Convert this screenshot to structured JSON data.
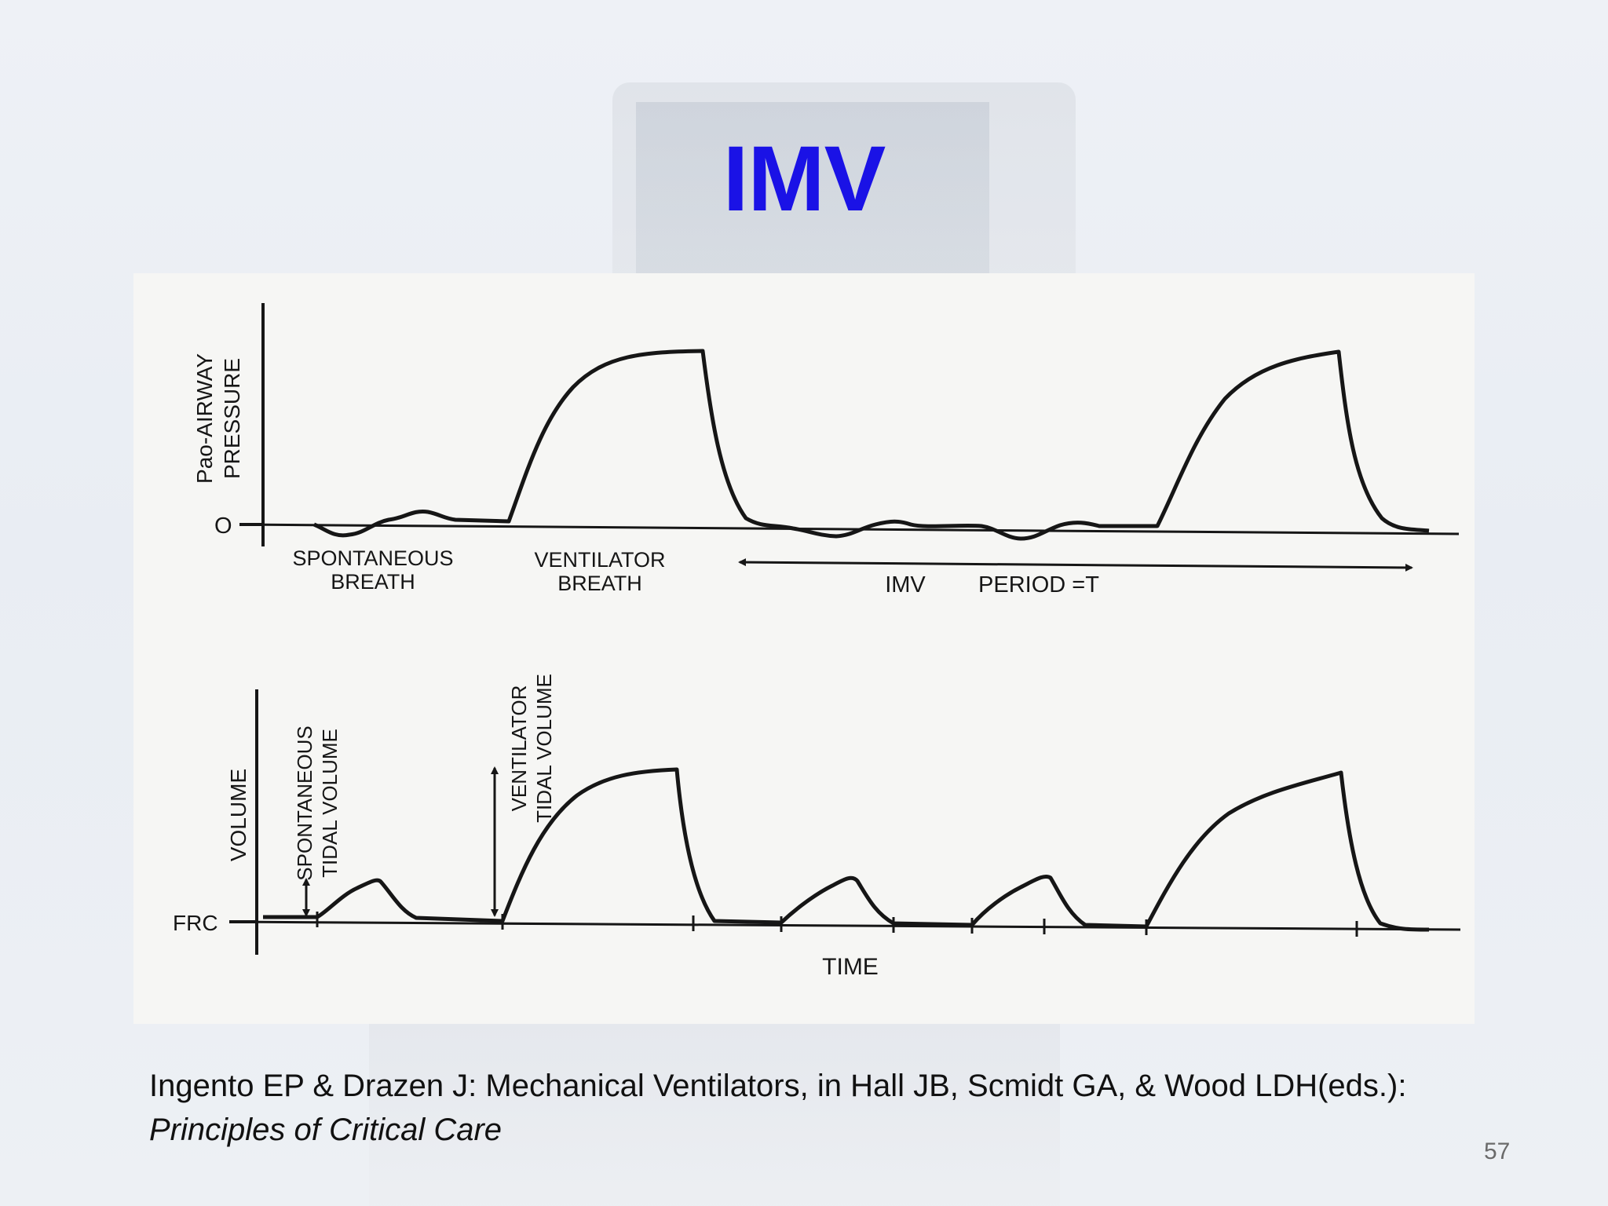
{
  "slide": {
    "title": "IMV",
    "number": "57",
    "colors": {
      "title": "#1a12e6",
      "ink": "#161616",
      "figure_background": "#f6f6f4"
    }
  },
  "figure": {
    "pressure_panel": {
      "axis_label_line1": "Pao-AIRWAY",
      "axis_label_line2": "PRESSURE",
      "zero_label": "O",
      "spontaneous_line1": "SPONTANEOUS",
      "spontaneous_line2": "BREATH",
      "ventilator_line1": "VENTILATOR",
      "ventilator_line2": "BREATH",
      "imv_label": "IMV",
      "period_label": "PERIOD =T"
    },
    "volume_panel": {
      "axis_label": "VOLUME",
      "frc_label": "FRC",
      "spontaneous_line1": "SPONTANEOUS",
      "spontaneous_line2": "TIDAL VOLUME",
      "ventilator_line1": "VENTILATOR",
      "ventilator_line2": "TIDAL VOLUME",
      "time_label": "TIME"
    }
  },
  "citation": {
    "prefix": "Ingento EP & Drazen J: Mechanical Ventilators, in Hall JB, Scmidt GA, & Wood LDH(eds.): ",
    "book": "Principles of Critical Care"
  }
}
